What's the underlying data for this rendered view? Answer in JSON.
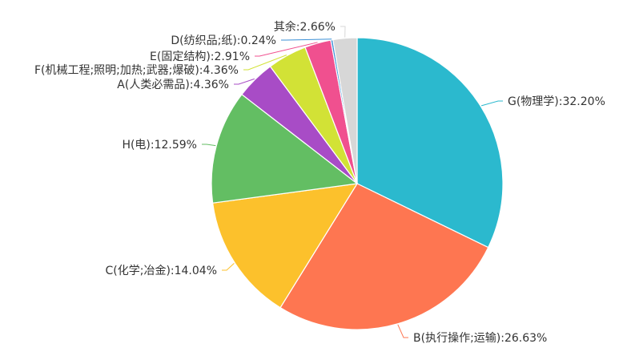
{
  "chart_data": {
    "type": "pie",
    "title": "",
    "legend": "none",
    "slices": [
      {
        "label": "G(物理学):32.20%",
        "value": 32.2,
        "color": "#2bb9ce"
      },
      {
        "label": "B(执行操作;运输):26.63%",
        "value": 26.63,
        "color": "#fe7651"
      },
      {
        "label": "C(化学;冶金):14.04%",
        "value": 14.04,
        "color": "#fcc12c"
      },
      {
        "label": "H(电):12.59%",
        "value": 12.59,
        "color": "#63be63"
      },
      {
        "label": "A(人类必需品):4.36%",
        "value": 4.36,
        "color": "#a84cc6"
      },
      {
        "label": "F(机械工程;照明;加热;武器;爆破):4.36%",
        "value": 4.36,
        "color": "#d2e236"
      },
      {
        "label": "E(固定结构):2.91%",
        "value": 2.91,
        "color": "#f0508f"
      },
      {
        "label": "D(纺织品;纸):0.24%",
        "value": 0.24,
        "color": "#3a8fd6"
      },
      {
        "label": "其余:2.66%",
        "value": 2.66,
        "color": "#d7d7d7"
      }
    ]
  }
}
